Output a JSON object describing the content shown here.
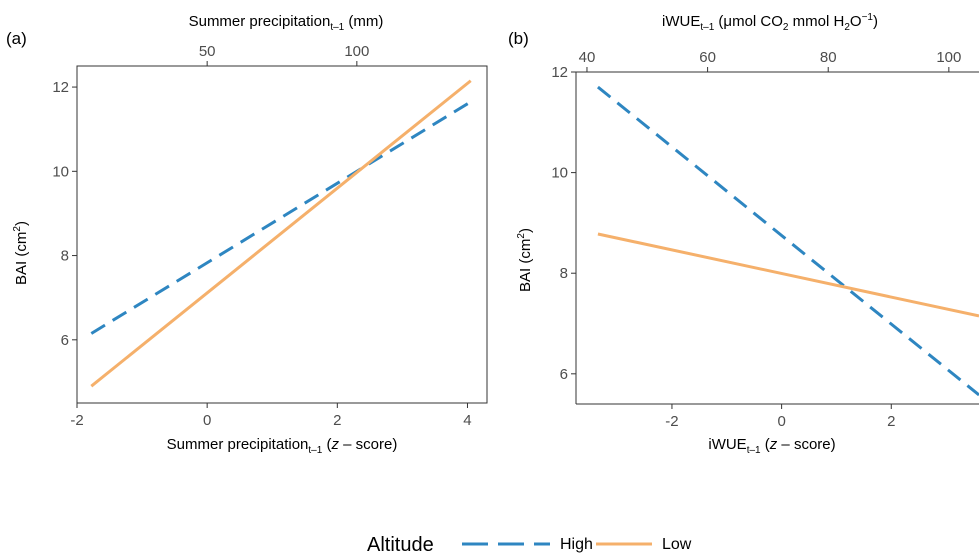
{
  "chart_data": [
    {
      "type": "line",
      "panel_label": "(a)",
      "xlabel_main": "Summer precipitation",
      "xlabel_sub": "t–1",
      "xlabel_z_prefix": " (",
      "xlabel_z_italic": "z",
      "xlabel_z_suffix": " – score)",
      "x2label_main": "Summer precipitation",
      "x2label_sub": "t–1",
      "x2label_suffix": " (mm)",
      "ylabel_main": "BAI (cm",
      "ylabel_sup": "2",
      "ylabel_end": ")",
      "xlim": [
        -2.0,
        4.3
      ],
      "ylim": [
        4.5,
        12.5
      ],
      "x_ticks": [
        -2,
        0,
        2,
        4
      ],
      "x_tick_labels": [
        "-2",
        "0",
        "2",
        "4"
      ],
      "y_ticks": [
        6,
        8,
        10,
        12
      ],
      "y_tick_labels": [
        "6",
        "8",
        "10",
        "12"
      ],
      "x2_ticks": [
        0,
        2.3
      ],
      "x2_tick_labels": [
        "50",
        "100"
      ],
      "series": [
        {
          "name": "High",
          "x": [
            -1.78,
            4.05
          ],
          "y": [
            6.15,
            11.65
          ],
          "color": "#2E86C1",
          "dash": "dashed"
        },
        {
          "name": "Low",
          "x": [
            -1.78,
            4.05
          ],
          "y": [
            4.9,
            12.15
          ],
          "color": "#F5B06B",
          "dash": "solid"
        }
      ]
    },
    {
      "type": "line",
      "panel_label": "(b)",
      "xlabel_main": "iWUE",
      "xlabel_sub": "t–1",
      "xlabel_z_prefix": " (",
      "xlabel_z_italic": "z",
      "xlabel_z_suffix": " – score)",
      "x2label_main": "iWUE",
      "x2label_sub": "t–1",
      "x2label_mid": " (μmol CO",
      "x2label_co2sub": "2",
      "x2label_mid2": " mmol H",
      "x2label_h2osub": "2",
      "x2label_o": "O",
      "x2label_sup": "−1",
      "x2label_end": ")",
      "ylabel_main": "BAI (cm",
      "ylabel_sup": "2",
      "ylabel_end": ")",
      "xlim": [
        -3.75,
        3.6
      ],
      "ylim": [
        5.4,
        12.0
      ],
      "x_ticks": [
        -2,
        0,
        2
      ],
      "x_tick_labels": [
        "-2",
        "0",
        "2"
      ],
      "y_ticks": [
        6,
        8,
        10,
        12
      ],
      "y_tick_labels": [
        "6",
        "8",
        "10",
        "12"
      ],
      "x2_ticks": [
        -3.55,
        -1.35,
        0.85,
        3.05
      ],
      "x2_tick_labels": [
        "40",
        "60",
        "80",
        "100"
      ],
      "series": [
        {
          "name": "High",
          "x": [
            -3.35,
            3.6
          ],
          "y": [
            11.7,
            5.58
          ],
          "color": "#2E86C1",
          "dash": "dashed"
        },
        {
          "name": "Low",
          "x": [
            -3.35,
            3.6
          ],
          "y": [
            8.78,
            7.15
          ],
          "color": "#F5B06B",
          "dash": "solid"
        }
      ]
    }
  ],
  "legend": {
    "title": "Altitude",
    "items": [
      {
        "label": "High",
        "color": "#2E86C1",
        "dash": "dashed"
      },
      {
        "label": "Low",
        "color": "#F5B06B",
        "dash": "solid"
      }
    ]
  }
}
